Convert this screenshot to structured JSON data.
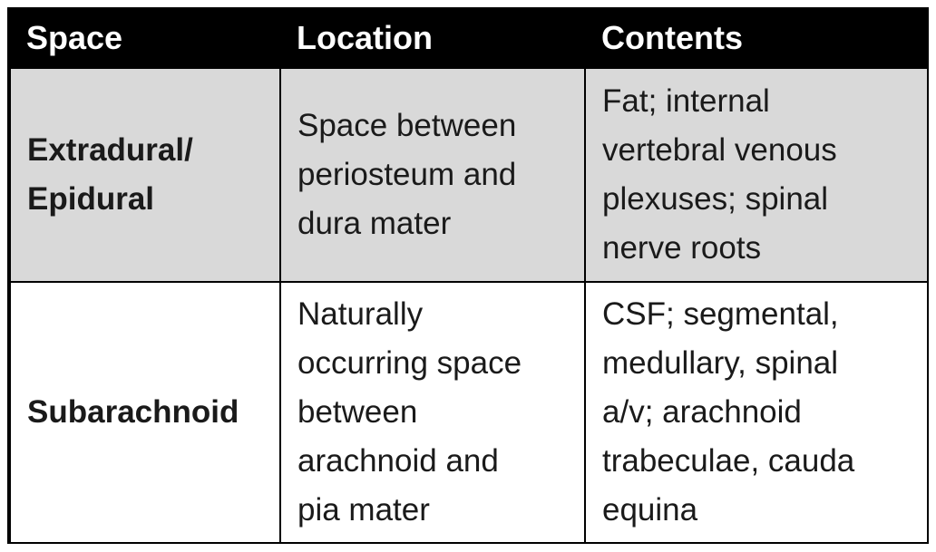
{
  "table": {
    "headers": [
      "Space",
      "Location",
      "Contents"
    ],
    "rows": [
      {
        "space": "Extradural/\nEpidural",
        "location": "Space between\nperiosteum and\ndura mater",
        "contents": "Fat; internal\nvertebral venous\nplexuses; spinal\nnerve roots"
      },
      {
        "space": "Subarachnoid",
        "location": "Naturally\noccurring space\nbetween\narachnoid and\npia mater",
        "contents": "CSF; segmental,\nmedullary, spinal\na/v; arachnoid\ntrabeculae, cauda\nequina"
      }
    ]
  },
  "colors": {
    "header_bg": "#000000",
    "header_text": "#ffffff",
    "row1_bg": "#d9d9d9",
    "row2_bg": "#ffffff"
  }
}
